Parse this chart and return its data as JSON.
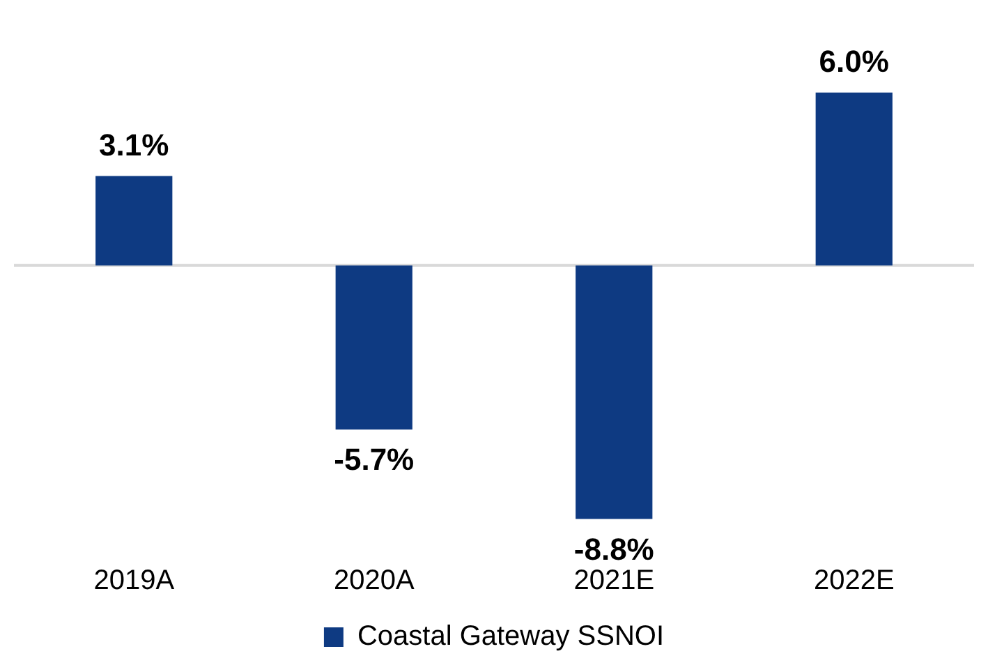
{
  "chart_data": {
    "type": "bar",
    "categories": [
      "2019A",
      "2020A",
      "2021E",
      "2022E"
    ],
    "series": [
      {
        "name": "Coastal Gateway SSNOI",
        "color": "#0e3a82",
        "values": [
          3.1,
          -5.7,
          -8.8,
          6.0
        ],
        "value_labels": [
          "3.1%",
          "-5.7%",
          "-8.8%",
          "6.0%"
        ]
      }
    ],
    "legend": "bottom",
    "grid": false
  }
}
